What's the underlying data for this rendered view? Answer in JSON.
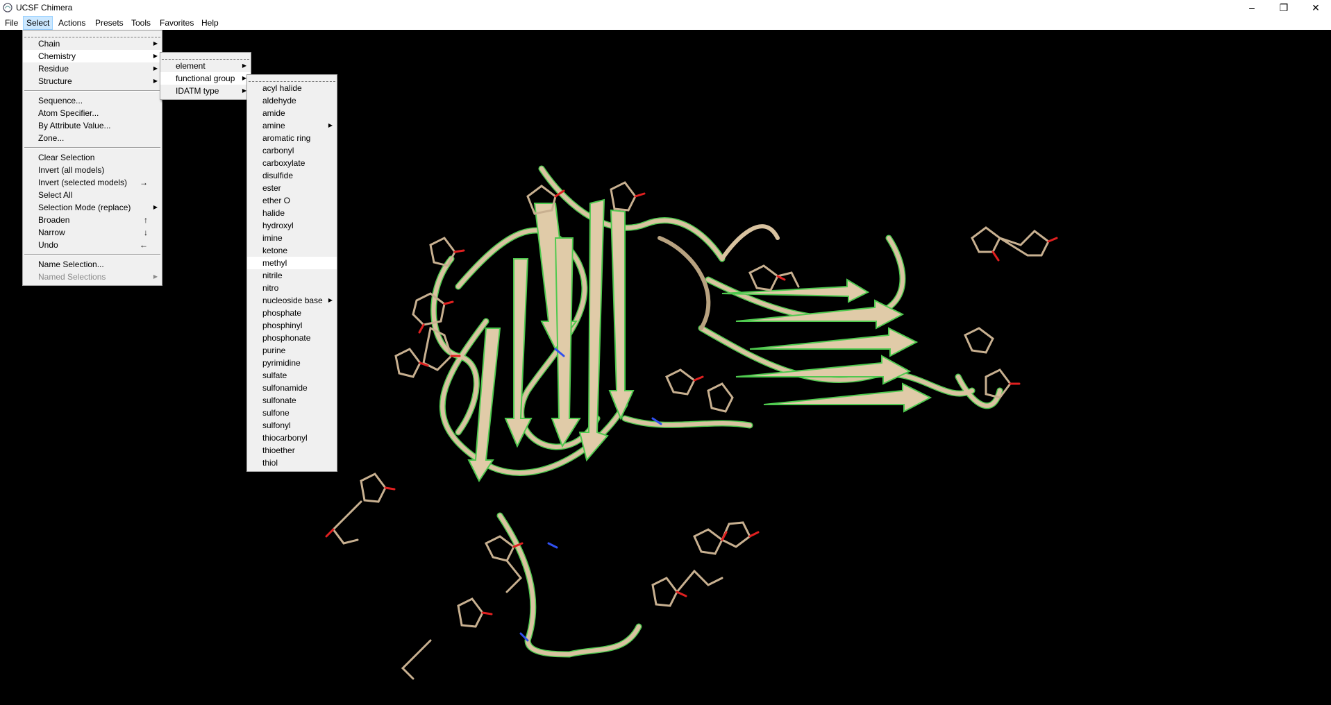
{
  "window": {
    "title": "UCSF Chimera",
    "minimize": "–",
    "restore": "❐",
    "close": "✕"
  },
  "menubar": [
    "File",
    "Select",
    "Actions",
    "Presets",
    "Tools",
    "Favorites",
    "Help"
  ],
  "select_menu": {
    "group1": [
      "Chain",
      "Chemistry",
      "Residue",
      "Structure"
    ],
    "group2": [
      "Sequence...",
      "Atom Specifier...",
      "By Attribute Value...",
      "Zone..."
    ],
    "group3": [
      "Clear Selection",
      "Invert (all models)",
      "Invert (selected models)",
      "Select All",
      "Selection Mode (replace)",
      "Broaden",
      "Narrow",
      "Undo"
    ],
    "group3_accels": {
      "invert_sel": "→",
      "broaden": "↑",
      "narrow": "↓",
      "undo": "←"
    },
    "group4": [
      "Name Selection...",
      "Named Selections"
    ]
  },
  "chemistry_menu": [
    "element",
    "functional group",
    "IDATM type"
  ],
  "functional_group_menu": [
    "acyl halide",
    "aldehyde",
    "amide",
    "amine",
    "aromatic ring",
    "carbonyl",
    "carboxylate",
    "disulfide",
    "ester",
    "ether O",
    "halide",
    "hydroxyl",
    "imine",
    "ketone",
    "methyl",
    "nitrile",
    "nitro",
    "nucleoside base",
    "phosphate",
    "phosphinyl",
    "phosphonate",
    "purine",
    "pyrimidine",
    "sulfate",
    "sulfonamide",
    "sulfonate",
    "sulfone",
    "sulfonyl",
    "thiocarbonyl",
    "thioether",
    "thiol"
  ],
  "colors": {
    "ribbon": "#d9c3a0",
    "helix_edge": "#4fc94f",
    "carbon": "#c8b090",
    "oxygen": "#e02020",
    "nitrogen": "#3050f0",
    "menu_bg": "#f0f0f0",
    "highlight": "#cce8ff"
  }
}
